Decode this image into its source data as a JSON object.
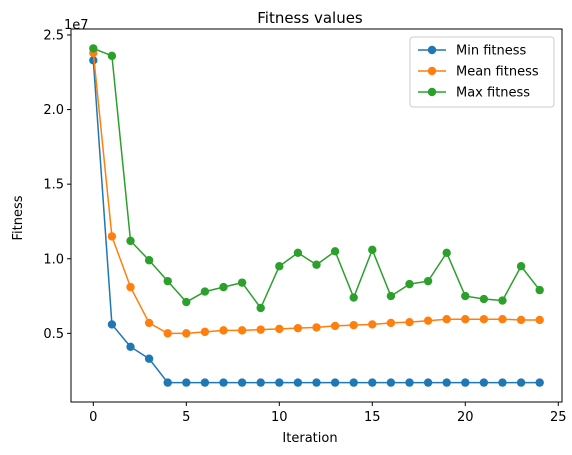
{
  "chart_data": {
    "type": "line",
    "title": "Fitness values",
    "xlabel": "Iteration",
    "ylabel": "Fitness",
    "y_offset_label": "1e7",
    "x": [
      0,
      1,
      2,
      3,
      4,
      5,
      6,
      7,
      8,
      9,
      10,
      11,
      12,
      13,
      14,
      15,
      16,
      17,
      18,
      19,
      20,
      21,
      22,
      23,
      24
    ],
    "xlim": [
      -1.2,
      25.2
    ],
    "ylim": [
      400000,
      25400000
    ],
    "xticks": [
      0,
      5,
      10,
      15,
      20,
      25
    ],
    "xtick_labels": [
      "0",
      "5",
      "10",
      "15",
      "20",
      "25"
    ],
    "yticks": [
      5000000,
      10000000,
      15000000,
      20000000,
      25000000
    ],
    "ytick_labels": [
      "0.5",
      "1.0",
      "1.5",
      "2.0",
      "2.5"
    ],
    "grid": false,
    "legend_position": "top-right",
    "series": [
      {
        "name": "Min fitness",
        "color": "#1f77b4",
        "values": [
          23300000,
          5600000,
          4100000,
          3300000,
          1700000,
          1700000,
          1700000,
          1700000,
          1700000,
          1700000,
          1700000,
          1700000,
          1700000,
          1700000,
          1700000,
          1700000,
          1700000,
          1700000,
          1700000,
          1700000,
          1700000,
          1700000,
          1700000,
          1700000,
          1700000
        ]
      },
      {
        "name": "Mean fitness",
        "color": "#ff7f0e",
        "values": [
          23800000,
          11500000,
          8100000,
          5700000,
          5000000,
          5000000,
          5100000,
          5200000,
          5200000,
          5250000,
          5300000,
          5350000,
          5400000,
          5500000,
          5550000,
          5600000,
          5700000,
          5750000,
          5850000,
          5950000,
          5950000,
          5950000,
          5950000,
          5900000,
          5900000
        ]
      },
      {
        "name": "Max fitness",
        "color": "#2ca02c",
        "values": [
          24100000,
          23600000,
          11200000,
          9900000,
          8500000,
          7100000,
          7800000,
          8100000,
          8400000,
          6700000,
          9500000,
          10400000,
          9600000,
          10500000,
          7400000,
          10600000,
          7500000,
          8300000,
          8500000,
          10400000,
          7500000,
          7300000,
          7200000,
          9500000,
          7900000
        ]
      }
    ]
  }
}
